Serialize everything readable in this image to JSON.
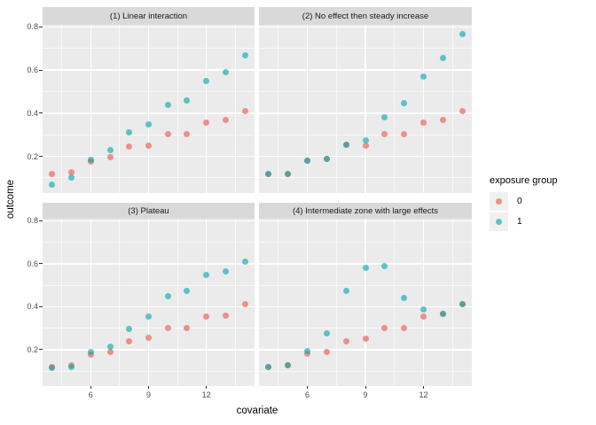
{
  "chart_data": {
    "type": "scatter",
    "title": "",
    "xlabel": "covariate",
    "ylabel": "outcome",
    "x_ticks": [
      "6",
      "9",
      "12"
    ],
    "y_ticks": [
      "0.2",
      "0.4",
      "0.6",
      "0.8"
    ],
    "x_minor_breaks": [
      4.5,
      7.5,
      10.5,
      13.5
    ],
    "y_minor_breaks": [
      0.1,
      0.3,
      0.5,
      0.7
    ],
    "xlim": [
      3.5,
      14.5
    ],
    "ylim": [
      0.03,
      0.81
    ],
    "grid": true,
    "legend_position": "right",
    "x": [
      4,
      5,
      6,
      7,
      8,
      9,
      10,
      11,
      12,
      13,
      14
    ],
    "facets": [
      {
        "label": "(1) Linear interaction",
        "series": [
          {
            "name": "0",
            "values": [
              0.12,
              0.125,
              0.175,
              0.195,
              0.245,
              0.25,
              0.305,
              0.305,
              0.355,
              0.37,
              0.41
            ]
          },
          {
            "name": "1",
            "values": [
              0.07,
              0.1,
              0.185,
              0.23,
              0.31,
              0.35,
              0.44,
              0.46,
              0.55,
              0.59,
              0.67
            ]
          }
        ]
      },
      {
        "label": "(2) No effect then steady increase",
        "series": [
          {
            "name": "0",
            "values": [
              0.12,
              0.12,
              0.18,
              0.19,
              0.255,
              0.25,
              0.305,
              0.305,
              0.355,
              0.37,
              0.41
            ]
          },
          {
            "name": "1",
            "values": [
              0.12,
              0.12,
              0.18,
              0.19,
              0.255,
              0.275,
              0.38,
              0.445,
              0.57,
              0.655,
              0.765
            ]
          }
        ]
      },
      {
        "label": "(3) Plateau",
        "series": [
          {
            "name": "0",
            "values": [
              0.12,
              0.125,
              0.175,
              0.19,
              0.24,
              0.255,
              0.3,
              0.3,
              0.355,
              0.36,
              0.41
            ]
          },
          {
            "name": "1",
            "values": [
              0.115,
              0.12,
              0.19,
              0.215,
              0.295,
              0.355,
              0.45,
              0.475,
              0.55,
              0.565,
              0.61
            ]
          }
        ]
      },
      {
        "label": "(4) Intermediate zone with large effects",
        "series": [
          {
            "name": "0",
            "values": [
              0.12,
              0.128,
              0.18,
              0.19,
              0.24,
              0.25,
              0.3,
              0.3,
              0.355,
              0.365,
              0.41
            ]
          },
          {
            "name": "1",
            "values": [
              0.12,
              0.128,
              0.195,
              0.275,
              0.475,
              0.58,
              0.59,
              0.44,
              0.385,
              0.365,
              0.41
            ]
          }
        ]
      }
    ],
    "legend": {
      "title": "exposure group",
      "entries": [
        {
          "label": "0",
          "color": "rgba(238,120,110,0.8)"
        },
        {
          "label": "1",
          "color": "rgba(0,170,176,0.62)"
        }
      ]
    }
  },
  "colors": {
    "panel_background": "#EBEBEB",
    "strip_background": "#D9D9D9",
    "gridline": "#FFFFFF",
    "tick_text": "#4D4D4D",
    "group0_dot": "rgba(238,120,110,0.8)",
    "group1_dot": "rgba(0,170,176,0.62)",
    "legend_key_background": "#F0F0F0"
  }
}
